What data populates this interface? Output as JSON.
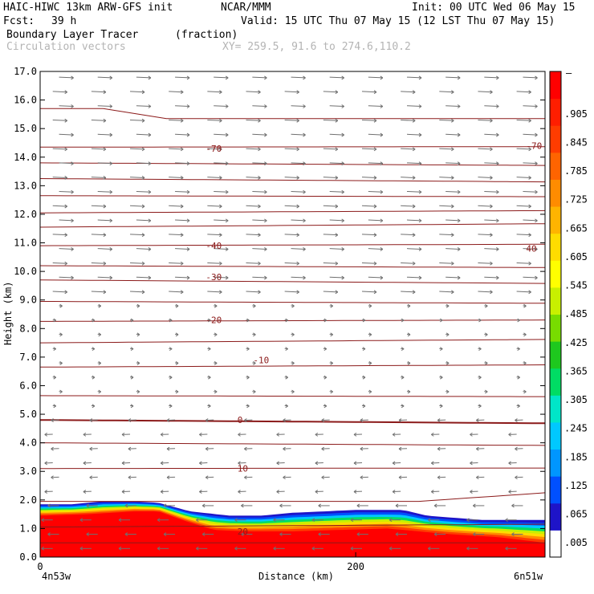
{
  "header": {
    "title_left": "HAIC-HIWC 13km ARW-GFS init",
    "org": "NCAR/MMM",
    "init": "Init: 00 UTC Wed 06 May 15",
    "fcst_label": "Fcst:",
    "fcst_value": "39 h",
    "valid": "Valid: 15 UTC Thu 07 May 15 (12 LST Thu 07 May 15)",
    "field_name": "Boundary Layer Tracer",
    "field_units": "(fraction)",
    "vectors_label": "Circulation vectors",
    "xy_label": "XY= 259.5, 91.6 to 274.6,110.2"
  },
  "chart_data": {
    "type": "heatmap",
    "xlabel": "Distance (km)",
    "ylabel": "Height (km)",
    "xlim": [
      0,
      320
    ],
    "ylim": [
      0,
      17
    ],
    "x_ticks": [
      "0",
      "200"
    ],
    "x_endpoints": [
      "4n53w",
      "6n51w"
    ],
    "y_ticks": [
      "0.0",
      "1.0",
      "2.0",
      "3.0",
      "4.0",
      "5.0",
      "6.0",
      "7.0",
      "8.0",
      "9.0",
      "10.0",
      "11.0",
      "12.0",
      "13.0",
      "14.0",
      "15.0",
      "16.0",
      "17.0"
    ],
    "colorbar": {
      "labels": [
        ".005",
        ".065",
        ".125",
        ".185",
        ".245",
        ".305",
        ".365",
        ".425",
        ".485",
        ".545",
        ".605",
        ".665",
        ".725",
        ".785",
        ".845",
        ".905"
      ],
      "top_label": "–",
      "colors": [
        "#ffffff",
        "#1e14c8",
        "#0050ff",
        "#0096ff",
        "#00c8ff",
        "#00e6c8",
        "#00dc64",
        "#1ec81e",
        "#78dc00",
        "#c8f000",
        "#ffff00",
        "#ffdc00",
        "#ffb400",
        "#ff8c00",
        "#ff6400",
        "#ff3c00",
        "#ff1e00",
        "#ff0000"
      ]
    },
    "contour_labels": [
      {
        "text": "-70",
        "x": 105,
        "y": 14.3
      },
      {
        "text": "-70",
        "x": 308,
        "y": 14.4
      },
      {
        "text": "-40",
        "x": 105,
        "y": 10.9
      },
      {
        "text": "40",
        "x": 308,
        "y": 10.8
      },
      {
        "text": "-30",
        "x": 105,
        "y": 9.8
      },
      {
        "text": "-20",
        "x": 105,
        "y": 8.3
      },
      {
        "text": "-10",
        "x": 135,
        "y": 6.9
      },
      {
        "text": "0",
        "x": 125,
        "y": 4.8
      },
      {
        "text": "10",
        "x": 125,
        "y": 3.1
      },
      {
        "text": "20",
        "x": 125,
        "y": 0.9
      }
    ],
    "tracer_top_km": [
      [
        0,
        1.85
      ],
      [
        20,
        1.85
      ],
      [
        40,
        1.95
      ],
      [
        60,
        1.95
      ],
      [
        75,
        1.9
      ],
      [
        95,
        1.6
      ],
      [
        120,
        1.45
      ],
      [
        140,
        1.45
      ],
      [
        160,
        1.55
      ],
      [
        180,
        1.6
      ],
      [
        200,
        1.65
      ],
      [
        230,
        1.65
      ],
      [
        245,
        1.45
      ],
      [
        280,
        1.3
      ],
      [
        320,
        1.3
      ]
    ],
    "tracer_red_top_km": [
      [
        0,
        1.45
      ],
      [
        30,
        1.5
      ],
      [
        60,
        1.6
      ],
      [
        75,
        1.6
      ],
      [
        90,
        1.3
      ],
      [
        110,
        0.95
      ],
      [
        130,
        0.9
      ],
      [
        160,
        0.9
      ],
      [
        190,
        0.95
      ],
      [
        220,
        1.0
      ],
      [
        240,
        0.9
      ],
      [
        260,
        0.8
      ],
      [
        290,
        0.7
      ],
      [
        320,
        0.5
      ]
    ]
  }
}
